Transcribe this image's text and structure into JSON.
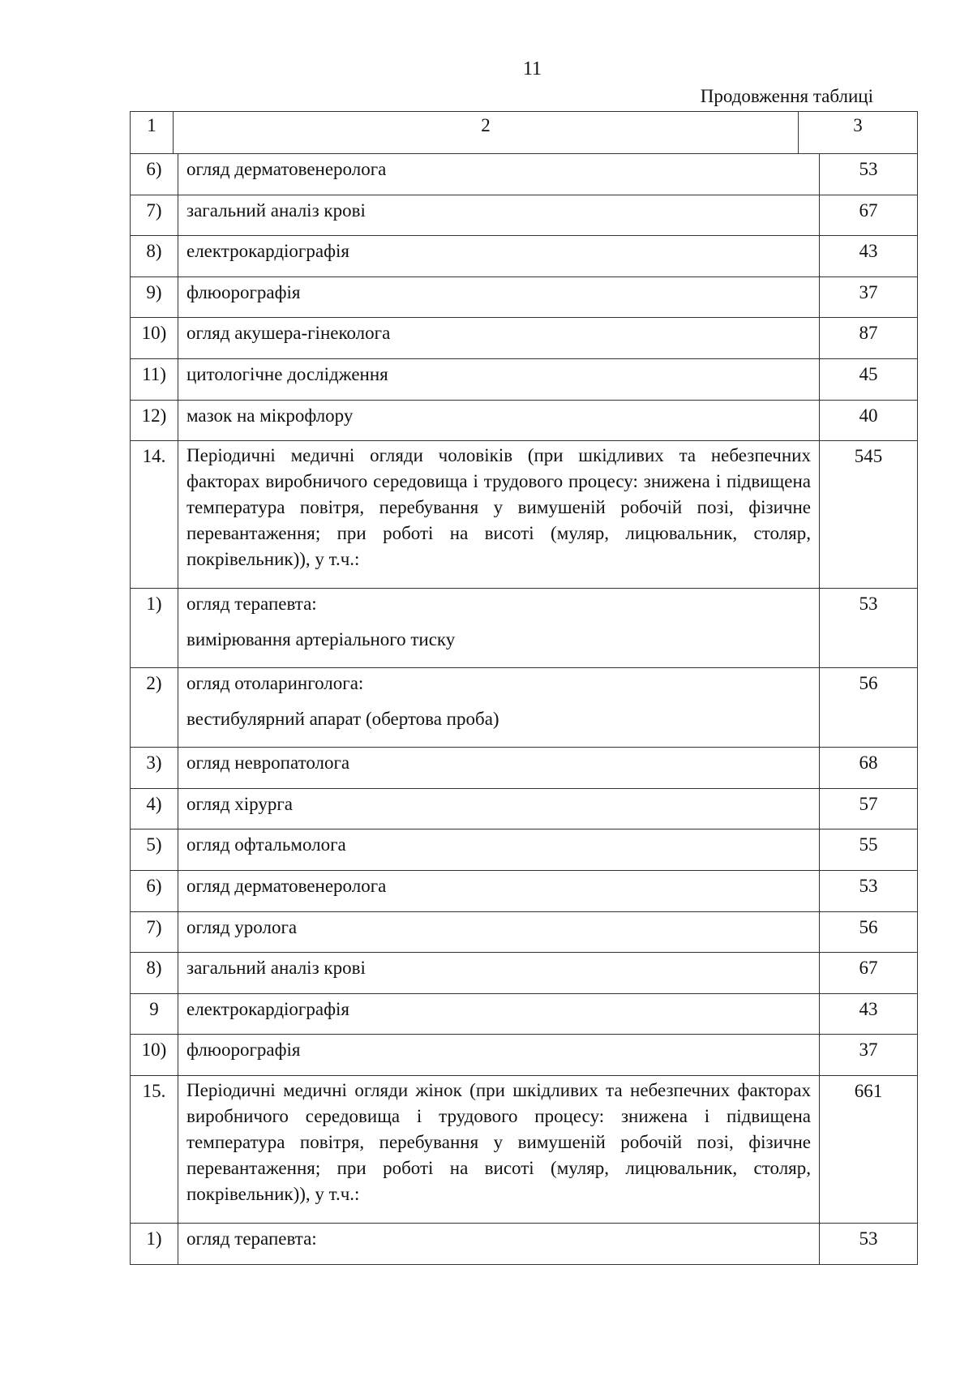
{
  "page_number": "11",
  "continuation_label": "Продовження таблиці",
  "header": [
    "1",
    "2",
    "3"
  ],
  "rows": [
    {
      "num": "6)",
      "name": "огляд дерматовенеролога",
      "value": "53"
    },
    {
      "num": "7)",
      "name": "загальний аналіз крові",
      "value": "67"
    },
    {
      "num": "8)",
      "name": "електрокардіографія",
      "value": "43"
    },
    {
      "num": "9)",
      "name": "флюорографія",
      "value": "37"
    },
    {
      "num": "10)",
      "name": "огляд акушера-гінеколога",
      "value": "87"
    },
    {
      "num": "11)",
      "name": "цитологічне дослідження",
      "value": "45"
    },
    {
      "num": "12)",
      "name": "мазок на мікрофлору",
      "value": "40"
    },
    {
      "num": "14.",
      "name": "Періодичні медичні огляди чоловіків (при шкідливих та небезпечних факторах виробничого середовища і трудового процесу: знижена і підвищена температура повітря, перебування у вимушеній робочій позі, фізичне перевантаження; при роботі на висоті (муляр, лицювальник, столяр, покрівельник)), у т.ч.:",
      "value": "545",
      "long": true
    },
    {
      "num": "1)",
      "name": "огляд терапевта:",
      "sub": "вимірювання артеріального тиску",
      "value": "53"
    },
    {
      "num": "2)",
      "name": "огляд отоларинголога:",
      "sub": "вестибулярний апарат (обертова проба)",
      "value": "56"
    },
    {
      "num": "3)",
      "name": "огляд невропатолога",
      "value": "68"
    },
    {
      "num": "4)",
      "name": "огляд хірурга",
      "value": "57"
    },
    {
      "num": "5)",
      "name": "огляд офтальмолога",
      "value": "55"
    },
    {
      "num": "6)",
      "name": "огляд дерматовенеролога",
      "value": "53"
    },
    {
      "num": "7)",
      "name": "огляд уролога",
      "value": "56"
    },
    {
      "num": "8)",
      "name": "загальний аналіз крові",
      "value": "67"
    },
    {
      "num": "9",
      "name": "електрокардіографія",
      "value": "43"
    },
    {
      "num": "10)",
      "name": "флюорографія",
      "value": "37"
    },
    {
      "num": "15.",
      "name": "Періодичні медичні огляди жінок (при шкідливих та небезпечних факторах виробничого середовища і трудового процесу: знижена і підвищена температура повітря, перебування у вимушеній робочій позі, фізичне перевантаження; при роботі на висоті (муляр, лицювальник, столяр, покрівельник)), у т.ч.:",
      "value": "661",
      "long": true
    },
    {
      "num": "1)",
      "name": "огляд терапевта:",
      "value": "53"
    }
  ]
}
